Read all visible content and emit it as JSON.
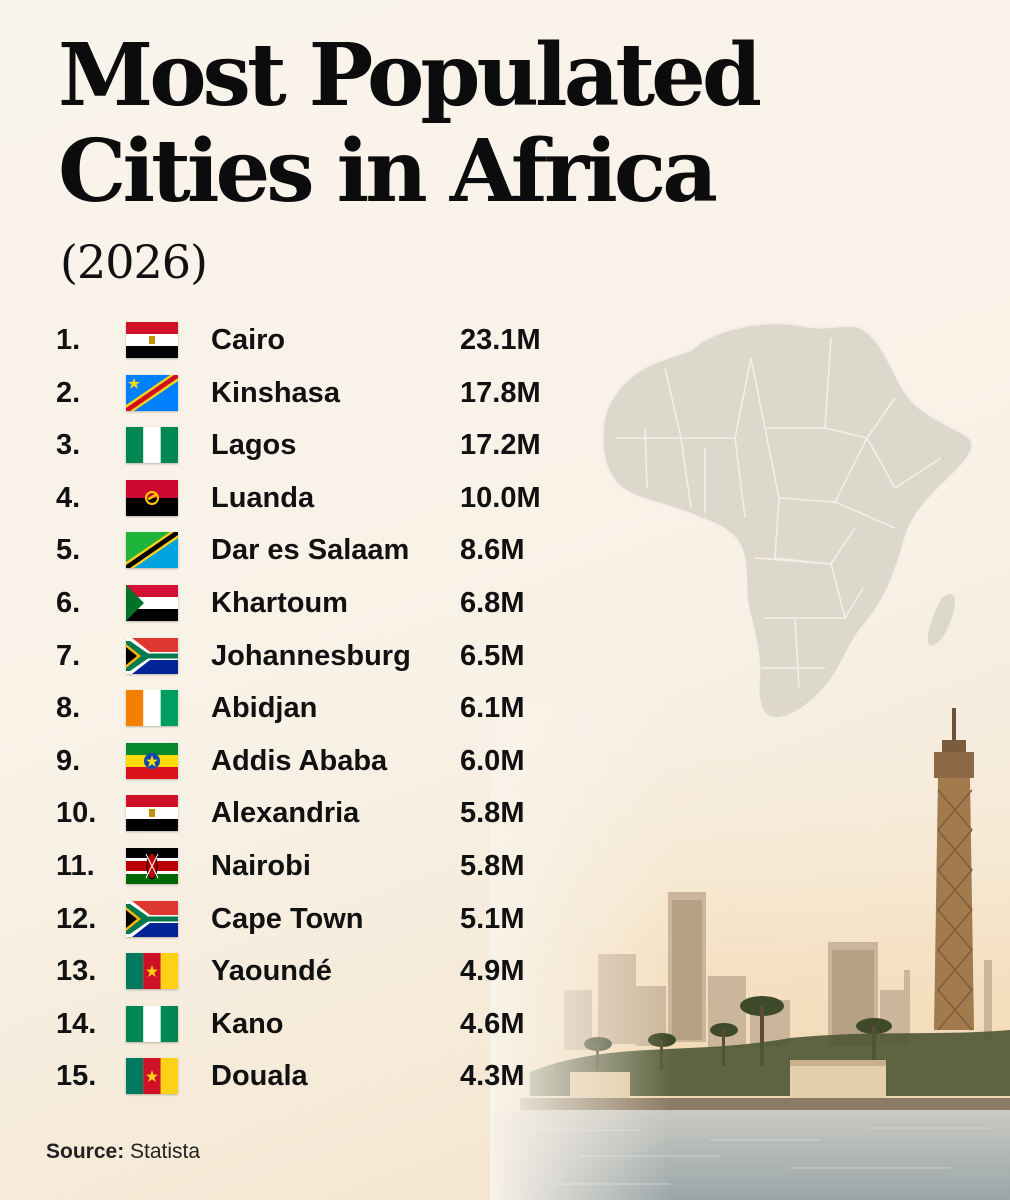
{
  "title_line1": "Most Populated",
  "title_line2": "Cities in Africa",
  "subtitle": "(2026)",
  "source_label": "Source:",
  "source_value": "Statista",
  "chart_data": {
    "type": "table",
    "title": "Most Populated Cities in Africa",
    "subtitle": "(2026)",
    "columns": [
      "rank",
      "flag",
      "city",
      "population"
    ],
    "rows": [
      {
        "rank": "1.",
        "flag": "egypt-flag-icon",
        "city": "Cairo",
        "population": "23.1M",
        "value": 23.1
      },
      {
        "rank": "2.",
        "flag": "dr-congo-flag-icon",
        "city": "Kinshasa",
        "population": "17.8M",
        "value": 17.8
      },
      {
        "rank": "3.",
        "flag": "nigeria-flag-icon",
        "city": "Lagos",
        "population": "17.2M",
        "value": 17.2
      },
      {
        "rank": "4.",
        "flag": "angola-flag-icon",
        "city": "Luanda",
        "population": "10.0M",
        "value": 10.0
      },
      {
        "rank": "5.",
        "flag": "tanzania-flag-icon",
        "city": "Dar es Salaam",
        "population": "8.6M",
        "value": 8.6
      },
      {
        "rank": "6.",
        "flag": "sudan-flag-icon",
        "city": "Khartoum",
        "population": "6.8M",
        "value": 6.8
      },
      {
        "rank": "7.",
        "flag": "south-africa-flag-icon",
        "city": "Johannesburg",
        "population": "6.5M",
        "value": 6.5
      },
      {
        "rank": "8.",
        "flag": "ivory-coast-flag-icon",
        "city": "Abidjan",
        "population": "6.1M",
        "value": 6.1
      },
      {
        "rank": "9.",
        "flag": "ethiopia-flag-icon",
        "city": "Addis Ababa",
        "population": "6.0M",
        "value": 6.0
      },
      {
        "rank": "10.",
        "flag": "egypt-flag-icon",
        "city": "Alexandria",
        "population": "5.8M",
        "value": 5.8
      },
      {
        "rank": "11.",
        "flag": "kenya-flag-icon",
        "city": "Nairobi",
        "population": "5.8M",
        "value": 5.8
      },
      {
        "rank": "12.",
        "flag": "south-africa-flag-icon",
        "city": "Cape Town",
        "population": "5.1M",
        "value": 5.1
      },
      {
        "rank": "13.",
        "flag": "cameroon-flag-icon",
        "city": "Yaoundé",
        "population": "4.9M",
        "value": 4.9
      },
      {
        "rank": "14.",
        "flag": "nigeria-flag-icon",
        "city": "Kano",
        "population": "4.6M",
        "value": 4.6
      },
      {
        "rank": "15.",
        "flag": "cameroon-flag-icon",
        "city": "Douala",
        "population": "4.3M",
        "value": 4.3
      }
    ]
  },
  "colors": {
    "background": "#f8f2e8",
    "text": "#111111",
    "map": "#ddd8cc",
    "map_border": "#f4efe6",
    "water": "#b7c2c7"
  },
  "decor": {
    "map_icon": "africa-map-icon",
    "skyline_icon": "cairo-skyline-icon"
  }
}
